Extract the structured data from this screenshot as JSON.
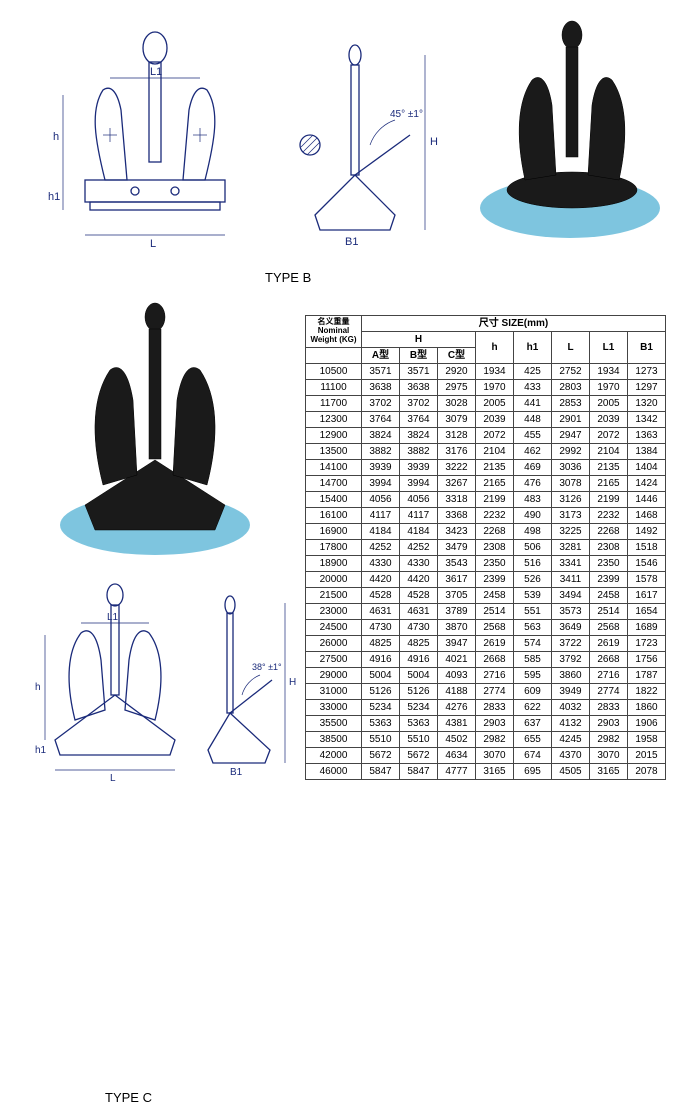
{
  "labels": {
    "type_b": "TYPE  B",
    "type_c": "TYPE  C",
    "angle_b": "45°  ±1°",
    "angle_c": "38°  ±1°"
  },
  "dim_labels": {
    "L": "L",
    "L1": "L1",
    "h": "h",
    "h1": "h1",
    "H": "H",
    "B1": "B1"
  },
  "table": {
    "header_weight_cn": "名义重量",
    "header_weight_en": "Nominal",
    "header_weight_unit": "Weight (KG)",
    "header_size_cn": "尺寸",
    "header_size_en": "SIZE(mm)",
    "H": "H",
    "A_type": "A型",
    "B_type": "B型",
    "C_type": "C型",
    "h": "h",
    "h1": "h1",
    "L": "L",
    "L1": "L1",
    "B1": "B1",
    "rows": [
      [
        "10500",
        "3571",
        "3571",
        "2920",
        "1934",
        "425",
        "2752",
        "1934",
        "1273"
      ],
      [
        "11100",
        "3638",
        "3638",
        "2975",
        "1970",
        "433",
        "2803",
        "1970",
        "1297"
      ],
      [
        "11700",
        "3702",
        "3702",
        "3028",
        "2005",
        "441",
        "2853",
        "2005",
        "1320"
      ],
      [
        "12300",
        "3764",
        "3764",
        "3079",
        "2039",
        "448",
        "2901",
        "2039",
        "1342"
      ],
      [
        "12900",
        "3824",
        "3824",
        "3128",
        "2072",
        "455",
        "2947",
        "2072",
        "1363"
      ],
      [
        "13500",
        "3882",
        "3882",
        "3176",
        "2104",
        "462",
        "2992",
        "2104",
        "1384"
      ],
      [
        "14100",
        "3939",
        "3939",
        "3222",
        "2135",
        "469",
        "3036",
        "2135",
        "1404"
      ],
      [
        "14700",
        "3994",
        "3994",
        "3267",
        "2165",
        "476",
        "3078",
        "2165",
        "1424"
      ],
      [
        "15400",
        "4056",
        "4056",
        "3318",
        "2199",
        "483",
        "3126",
        "2199",
        "1446"
      ],
      [
        "16100",
        "4117",
        "4117",
        "3368",
        "2232",
        "490",
        "3173",
        "2232",
        "1468"
      ],
      [
        "16900",
        "4184",
        "4184",
        "3423",
        "2268",
        "498",
        "3225",
        "2268",
        "1492"
      ],
      [
        "17800",
        "4252",
        "4252",
        "3479",
        "2308",
        "506",
        "3281",
        "2308",
        "1518"
      ],
      [
        "18900",
        "4330",
        "4330",
        "3543",
        "2350",
        "516",
        "3341",
        "2350",
        "1546"
      ],
      [
        "20000",
        "4420",
        "4420",
        "3617",
        "2399",
        "526",
        "3411",
        "2399",
        "1578"
      ],
      [
        "21500",
        "4528",
        "4528",
        "3705",
        "2458",
        "539",
        "3494",
        "2458",
        "1617"
      ],
      [
        "23000",
        "4631",
        "4631",
        "3789",
        "2514",
        "551",
        "3573",
        "2514",
        "1654"
      ],
      [
        "24500",
        "4730",
        "4730",
        "3870",
        "2568",
        "563",
        "3649",
        "2568",
        "1689"
      ],
      [
        "26000",
        "4825",
        "4825",
        "3947",
        "2619",
        "574",
        "3722",
        "2619",
        "1723"
      ],
      [
        "27500",
        "4916",
        "4916",
        "4021",
        "2668",
        "585",
        "3792",
        "2668",
        "1756"
      ],
      [
        "29000",
        "5004",
        "5004",
        "4093",
        "2716",
        "595",
        "3860",
        "2716",
        "1787"
      ],
      [
        "31000",
        "5126",
        "5126",
        "4188",
        "2774",
        "609",
        "3949",
        "2774",
        "1822"
      ],
      [
        "33000",
        "5234",
        "5234",
        "4276",
        "2833",
        "622",
        "4032",
        "2833",
        "1860"
      ],
      [
        "35500",
        "5363",
        "5363",
        "4381",
        "2903",
        "637",
        "4132",
        "2903",
        "1906"
      ],
      [
        "38500",
        "5510",
        "5510",
        "4502",
        "2982",
        "655",
        "4245",
        "2982",
        "1958"
      ],
      [
        "42000",
        "5672",
        "5672",
        "4634",
        "3070",
        "674",
        "4370",
        "3070",
        "2015"
      ],
      [
        "46000",
        "5847",
        "5847",
        "4777",
        "3165",
        "695",
        "4505",
        "3165",
        "2078"
      ]
    ]
  },
  "colors": {
    "shadow": "#7ec5df",
    "line": "#1a2a7a",
    "anchor": "#1a1a1a",
    "table_border": "#444444",
    "background": "#ffffff"
  }
}
